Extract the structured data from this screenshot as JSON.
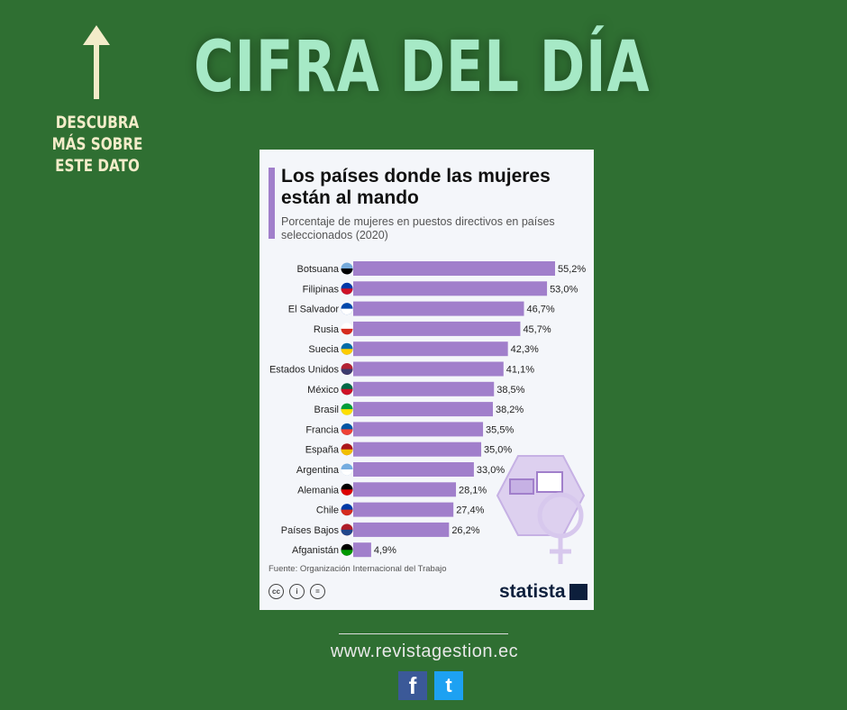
{
  "headline": "CIFRA DEL DÍA",
  "side_note": "DESCUBRA MÁS SOBRE ESTE DATO",
  "footer": {
    "url": "www.revistagestion.ec",
    "facebook": "f",
    "twitter": "t"
  },
  "chart_data": {
    "type": "bar",
    "orientation": "horizontal",
    "title": "Los países donde las mujeres están al mando",
    "subtitle": "Porcentaje de mujeres en puestos directivos en países seleccionados (2020)",
    "source": "Fuente: Organización Internacional del Trabajo",
    "brand": "statista",
    "bar_color": "#a17fcb",
    "categories": [
      "Botsuana",
      "Filipinas",
      "El Salvador",
      "Rusia",
      "Suecia",
      "Estados Unidos",
      "México",
      "Brasil",
      "Francia",
      "España",
      "Argentina",
      "Alemania",
      "Chile",
      "Países Bajos",
      "Afganistán"
    ],
    "values": [
      55.2,
      53.0,
      46.7,
      45.7,
      42.3,
      41.1,
      38.5,
      38.2,
      35.5,
      35.0,
      33.0,
      28.1,
      27.4,
      26.2,
      4.9
    ],
    "labels": [
      "55,2%",
      "53,0%",
      "46,7%",
      "45,7%",
      "42,3%",
      "41,1%",
      "38,5%",
      "38,2%",
      "35,5%",
      "35,0%",
      "33,0%",
      "28,1%",
      "27,4%",
      "26,2%",
      "4,9%"
    ],
    "flag_colors": [
      [
        "#75aadb",
        "#000"
      ],
      [
        "#0038a8",
        "#ce1126"
      ],
      [
        "#0047ab",
        "#fff"
      ],
      [
        "#fff",
        "#d52b1e"
      ],
      [
        "#006aa7",
        "#fecc00"
      ],
      [
        "#b22234",
        "#3c3b6e"
      ],
      [
        "#006847",
        "#ce1126"
      ],
      [
        "#009c3b",
        "#ffdf00"
      ],
      [
        "#0055a4",
        "#ef4135"
      ],
      [
        "#aa151b",
        "#f1bf00"
      ],
      [
        "#74acdf",
        "#fff"
      ],
      [
        "#000",
        "#dd0000"
      ],
      [
        "#0039a6",
        "#d52b1e"
      ],
      [
        "#ae1c28",
        "#21468b"
      ],
      [
        "#000",
        "#009900"
      ]
    ],
    "grid": false
  }
}
